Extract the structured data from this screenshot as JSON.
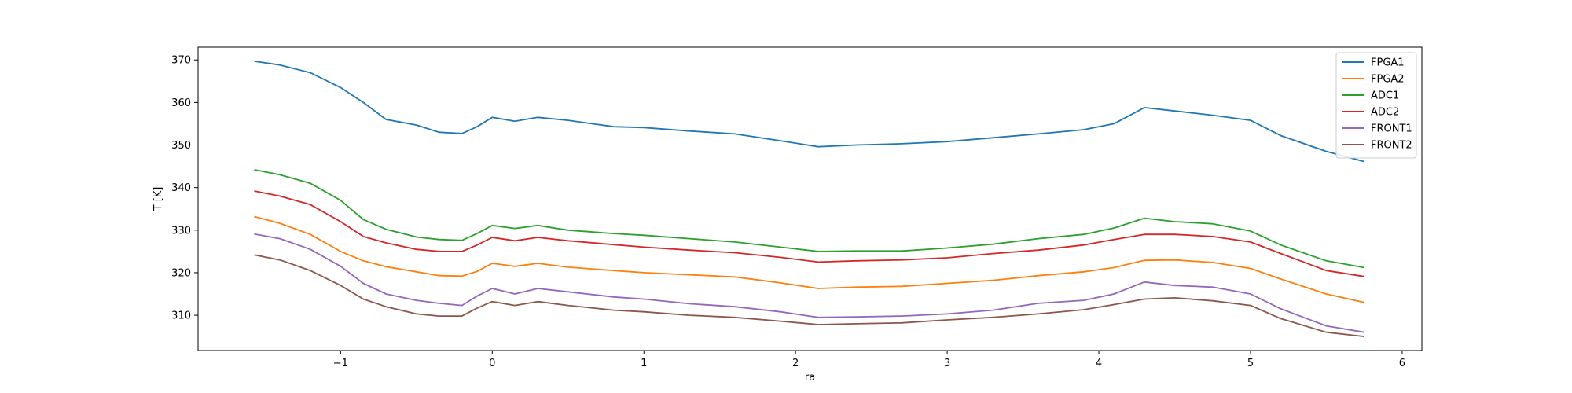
{
  "chart_data": {
    "type": "line",
    "title": "",
    "xlabel": "ra",
    "ylabel": "T [K]",
    "xlim": [
      -1.94,
      6.13
    ],
    "ylim": [
      301.7,
      373.0
    ],
    "xticks": [
      -1,
      0,
      1,
      2,
      3,
      4,
      5,
      6
    ],
    "xtick_labels": [
      "−1",
      "0",
      "1",
      "2",
      "3",
      "4",
      "5",
      "6"
    ],
    "yticks": [
      310,
      320,
      330,
      340,
      350,
      360,
      370
    ],
    "ytick_labels": [
      "310",
      "320",
      "330",
      "340",
      "350",
      "360",
      "370"
    ],
    "grid": false,
    "legend_position": "top-right",
    "x": [
      -1.57,
      -1.4,
      -1.2,
      -1.0,
      -0.85,
      -0.7,
      -0.5,
      -0.35,
      -0.2,
      -0.1,
      0.0,
      0.15,
      0.3,
      0.5,
      0.8,
      1.0,
      1.3,
      1.6,
      1.9,
      2.15,
      2.4,
      2.7,
      3.0,
      3.3,
      3.6,
      3.9,
      4.1,
      4.3,
      4.5,
      4.75,
      5.0,
      5.2,
      5.5,
      5.75
    ],
    "series": [
      {
        "name": "FPGA1",
        "color": "#1f77b4",
        "values": [
          369.7,
          368.8,
          367.0,
          363.5,
          360.0,
          356.0,
          354.7,
          353.0,
          352.7,
          354.3,
          356.5,
          355.6,
          356.5,
          355.8,
          354.3,
          354.1,
          353.3,
          352.6,
          351.0,
          349.6,
          350.0,
          350.3,
          350.8,
          351.7,
          352.6,
          353.6,
          355.0,
          358.8,
          358.0,
          357.0,
          355.8,
          352.2,
          348.5,
          346.1
        ]
      },
      {
        "name": "FPGA2",
        "color": "#ff7f0e",
        "values": [
          333.2,
          331.6,
          329.0,
          325.0,
          322.8,
          321.4,
          320.2,
          319.3,
          319.2,
          320.3,
          322.2,
          321.5,
          322.2,
          321.3,
          320.5,
          320.0,
          319.5,
          319.0,
          317.6,
          316.3,
          316.6,
          316.8,
          317.5,
          318.2,
          319.3,
          320.2,
          321.2,
          322.9,
          323.0,
          322.4,
          321.0,
          318.5,
          315.0,
          313.0
        ]
      },
      {
        "name": "ADC1",
        "color": "#2ca02c",
        "values": [
          344.2,
          343.0,
          341.0,
          337.0,
          332.5,
          330.2,
          328.4,
          327.8,
          327.6,
          329.2,
          331.1,
          330.4,
          331.1,
          330.0,
          329.2,
          328.8,
          328.0,
          327.2,
          326.0,
          325.0,
          325.1,
          325.1,
          325.8,
          326.7,
          328.0,
          329.0,
          330.5,
          332.8,
          332.0,
          331.5,
          329.8,
          326.5,
          322.8,
          321.2
        ]
      },
      {
        "name": "ADC2",
        "color": "#d62728",
        "values": [
          339.2,
          338.0,
          336.0,
          332.0,
          328.5,
          327.0,
          325.5,
          325.0,
          325.0,
          326.5,
          328.3,
          327.5,
          328.3,
          327.5,
          326.6,
          326.0,
          325.3,
          324.7,
          323.6,
          322.5,
          322.8,
          323.0,
          323.5,
          324.5,
          325.3,
          326.5,
          327.8,
          329.0,
          329.0,
          328.5,
          327.2,
          324.5,
          320.5,
          319.1
        ]
      },
      {
        "name": "FRONT1",
        "color": "#9467bd",
        "values": [
          329.1,
          328.0,
          325.5,
          321.5,
          317.5,
          315.0,
          313.5,
          312.8,
          312.3,
          314.5,
          316.3,
          315.0,
          316.3,
          315.5,
          314.3,
          313.8,
          312.7,
          312.0,
          310.8,
          309.5,
          309.6,
          309.8,
          310.3,
          311.2,
          312.8,
          313.5,
          315.0,
          317.8,
          317.0,
          316.6,
          315.0,
          311.5,
          307.5,
          306.0
        ]
      },
      {
        "name": "FRONT2",
        "color": "#8c564b",
        "values": [
          324.2,
          323.0,
          320.5,
          317.0,
          313.8,
          312.0,
          310.3,
          309.8,
          309.8,
          311.7,
          313.2,
          312.3,
          313.2,
          312.3,
          311.2,
          310.8,
          310.0,
          309.5,
          308.6,
          307.8,
          308.0,
          308.2,
          308.9,
          309.5,
          310.3,
          311.3,
          312.5,
          313.8,
          314.1,
          313.4,
          312.3,
          309.2,
          306.0,
          305.0
        ]
      }
    ]
  }
}
